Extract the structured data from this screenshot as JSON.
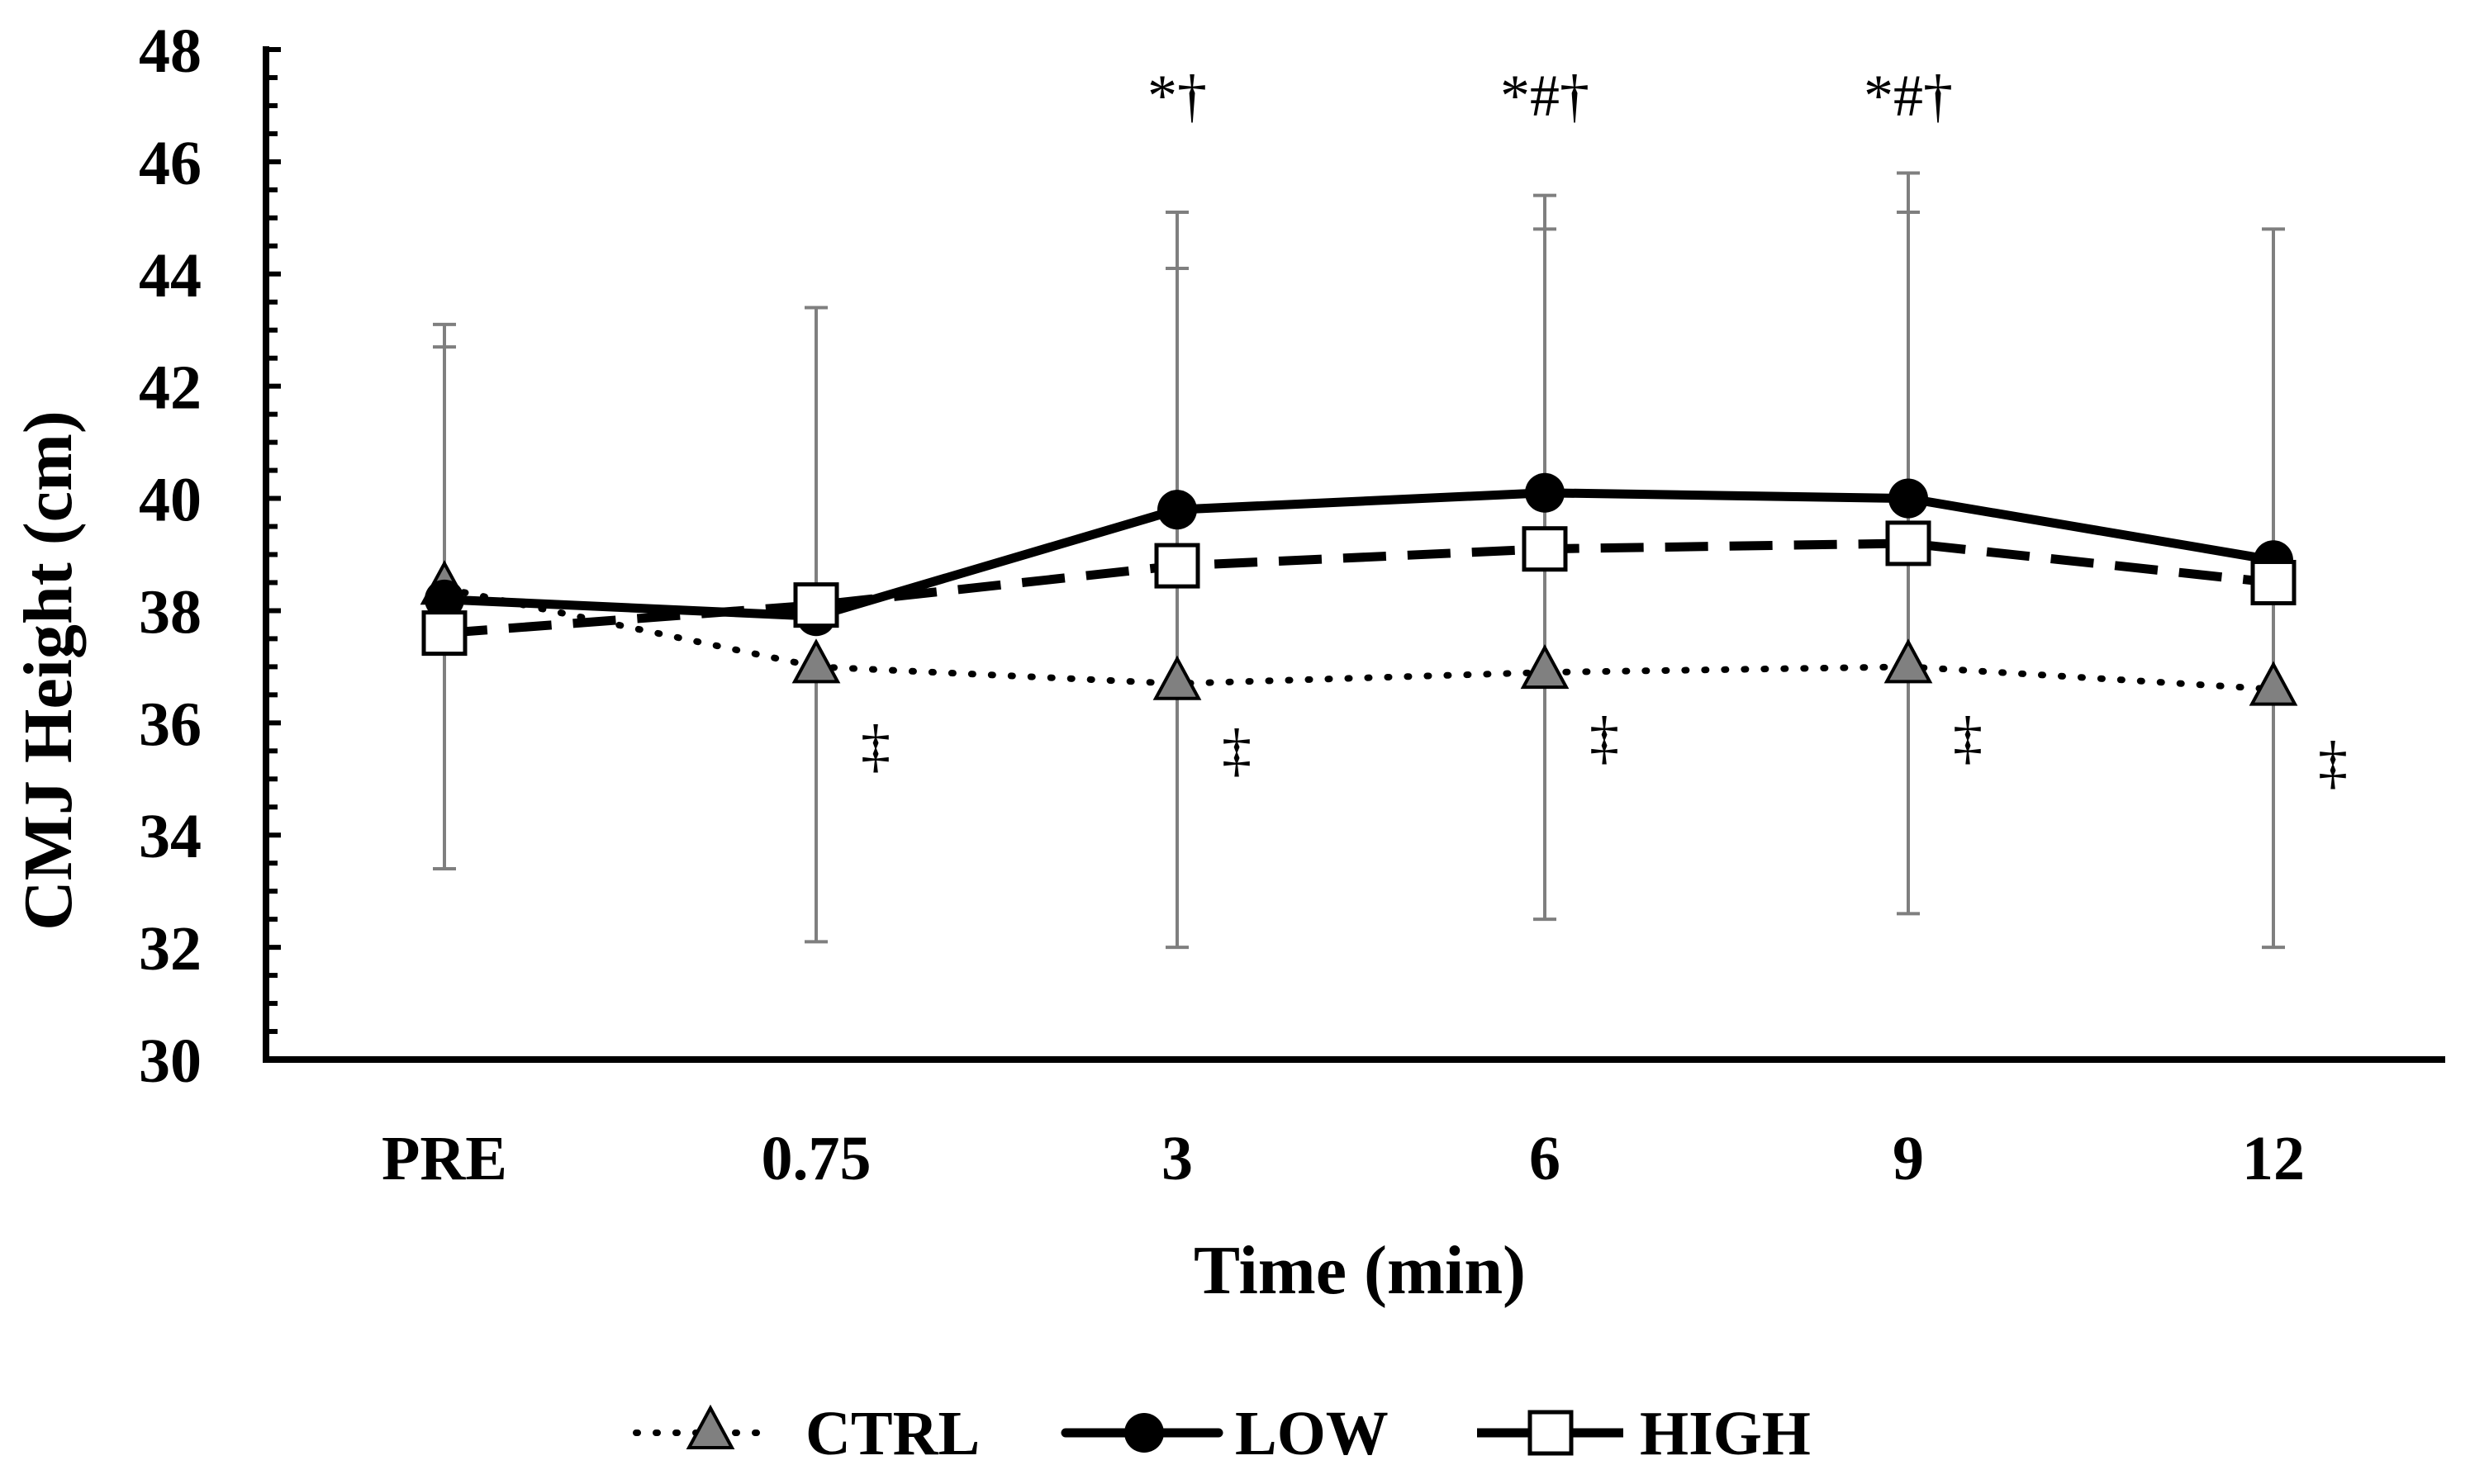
{
  "chart_data": {
    "type": "line",
    "title": "",
    "xlabel": "Time (min)",
    "ylabel": "CMJ Height (cm)",
    "categories": [
      "PRE",
      "0.75",
      "3",
      "6",
      "9",
      "12"
    ],
    "ylim": [
      30,
      48
    ],
    "yticks": [
      30,
      32,
      34,
      36,
      38,
      40,
      42,
      44,
      46,
      48
    ],
    "yticks_labels": [
      "30",
      "32",
      "34",
      "36",
      "38",
      "40",
      "42",
      "44",
      "46",
      "48"
    ],
    "grid": false,
    "legend": "bottom",
    "series": [
      {
        "name": "CTRL",
        "style": "dotted",
        "marker": "triangle",
        "values": [
          38.4,
          37.0,
          36.7,
          36.9,
          37.0,
          36.6
        ],
        "err_low": [
          33.4,
          32.1,
          32.0,
          32.5,
          32.6,
          32.0
        ],
        "err_high": [
          43.1,
          null,
          45.1,
          45.4,
          45.8,
          44.8
        ]
      },
      {
        "name": "LOW",
        "style": "solid",
        "marker": "circle",
        "values": [
          38.2,
          37.9,
          39.8,
          40.1,
          40.0,
          38.9
        ],
        "err_low": [
          null,
          null,
          null,
          null,
          null,
          null
        ],
        "err_high": [
          null,
          43.4,
          null,
          null,
          null,
          null
        ]
      },
      {
        "name": "HIGH",
        "style": "dashed",
        "marker": "square",
        "values": [
          37.6,
          38.1,
          38.8,
          39.1,
          39.2,
          38.5
        ],
        "err_low": [
          null,
          null,
          null,
          null,
          null,
          null
        ],
        "err_high": [
          42.7,
          null,
          44.1,
          44.8,
          45.1,
          null
        ]
      }
    ],
    "annotations_top": [
      "",
      "",
      "*†",
      "*#†",
      "*#†",
      ""
    ],
    "annotations_below": [
      "",
      "‡",
      "‡",
      "‡",
      "‡",
      "‡"
    ],
    "colors": {
      "ctrl_marker": "#808080",
      "errorbar": "#7f7f7f",
      "line": "#000000",
      "square_fill": "#ffffff"
    }
  }
}
